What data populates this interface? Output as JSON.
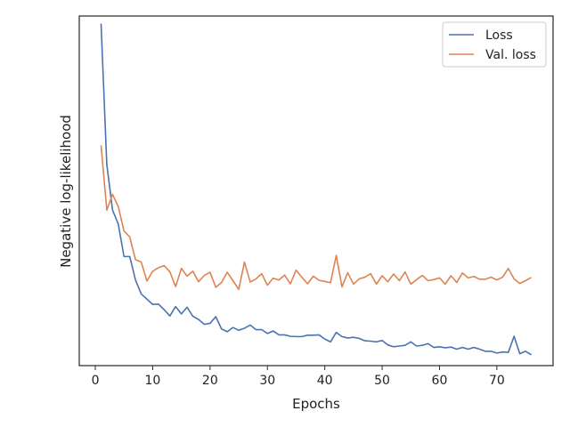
{
  "chart_data": {
    "type": "line",
    "title": "",
    "xlabel": "Epochs",
    "ylabel": "Negative log-likelihood",
    "xlim": [
      -2.8,
      79.8
    ],
    "ylim": [
      0,
      1
    ],
    "xticks": [
      0,
      10,
      20,
      30,
      40,
      50,
      60,
      70
    ],
    "y_tick_labels_shown": false,
    "grid": false,
    "legend_position": "top-right",
    "series": [
      {
        "name": "Loss",
        "color": "#4c72b0",
        "x": [
          1,
          2,
          3,
          4,
          5,
          6,
          7,
          8,
          9,
          10,
          11,
          12,
          13,
          14,
          15,
          16,
          17,
          18,
          19,
          20,
          21,
          22,
          23,
          24,
          25,
          26,
          27,
          28,
          29,
          30,
          31,
          32,
          33,
          34,
          35,
          36,
          37,
          38,
          39,
          40,
          41,
          42,
          43,
          44,
          45,
          46,
          47,
          48,
          49,
          50,
          51,
          52,
          53,
          54,
          55,
          56,
          57,
          58,
          59,
          60,
          61,
          62,
          63,
          64,
          65,
          66,
          67,
          68,
          69,
          70,
          71,
          72,
          73,
          74,
          75,
          76
        ],
        "values": [
          0.978,
          0.575,
          0.445,
          0.405,
          0.312,
          0.312,
          0.245,
          0.205,
          0.19,
          0.175,
          0.176,
          0.16,
          0.142,
          0.169,
          0.148,
          0.167,
          0.141,
          0.132,
          0.118,
          0.121,
          0.14,
          0.105,
          0.097,
          0.109,
          0.101,
          0.107,
          0.116,
          0.103,
          0.103,
          0.092,
          0.099,
          0.088,
          0.088,
          0.084,
          0.083,
          0.083,
          0.087,
          0.087,
          0.088,
          0.076,
          0.068,
          0.095,
          0.083,
          0.079,
          0.081,
          0.078,
          0.071,
          0.07,
          0.068,
          0.072,
          0.059,
          0.054,
          0.056,
          0.058,
          0.068,
          0.056,
          0.058,
          0.063,
          0.052,
          0.054,
          0.051,
          0.053,
          0.047,
          0.052,
          0.047,
          0.052,
          0.047,
          0.041,
          0.041,
          0.036,
          0.039,
          0.038,
          0.084,
          0.034,
          0.041,
          0.031
        ]
      },
      {
        "name": "Val. loss",
        "color": "#dd8452",
        "x": [
          1,
          2,
          3,
          4,
          5,
          6,
          7,
          8,
          9,
          10,
          11,
          12,
          13,
          14,
          15,
          16,
          17,
          18,
          19,
          20,
          21,
          22,
          23,
          24,
          25,
          26,
          27,
          28,
          29,
          30,
          31,
          32,
          33,
          34,
          35,
          36,
          37,
          38,
          39,
          40,
          41,
          42,
          43,
          44,
          45,
          46,
          47,
          48,
          49,
          50,
          51,
          52,
          53,
          54,
          55,
          56,
          57,
          58,
          59,
          60,
          61,
          62,
          63,
          64,
          65,
          66,
          67,
          68,
          69,
          70,
          71,
          72,
          73,
          74,
          75,
          76
        ],
        "values": [
          0.63,
          0.445,
          0.49,
          0.455,
          0.385,
          0.368,
          0.303,
          0.296,
          0.242,
          0.27,
          0.28,
          0.286,
          0.268,
          0.226,
          0.278,
          0.256,
          0.27,
          0.24,
          0.258,
          0.267,
          0.224,
          0.238,
          0.267,
          0.243,
          0.218,
          0.296,
          0.239,
          0.248,
          0.263,
          0.23,
          0.25,
          0.245,
          0.259,
          0.234,
          0.273,
          0.253,
          0.234,
          0.256,
          0.244,
          0.241,
          0.237,
          0.315,
          0.225,
          0.266,
          0.233,
          0.248,
          0.253,
          0.263,
          0.233,
          0.257,
          0.24,
          0.262,
          0.243,
          0.268,
          0.233,
          0.246,
          0.258,
          0.243,
          0.246,
          0.251,
          0.233,
          0.257,
          0.238,
          0.265,
          0.251,
          0.255,
          0.247,
          0.247,
          0.253,
          0.245,
          0.253,
          0.278,
          0.248,
          0.235,
          0.243,
          0.252
        ]
      }
    ]
  }
}
